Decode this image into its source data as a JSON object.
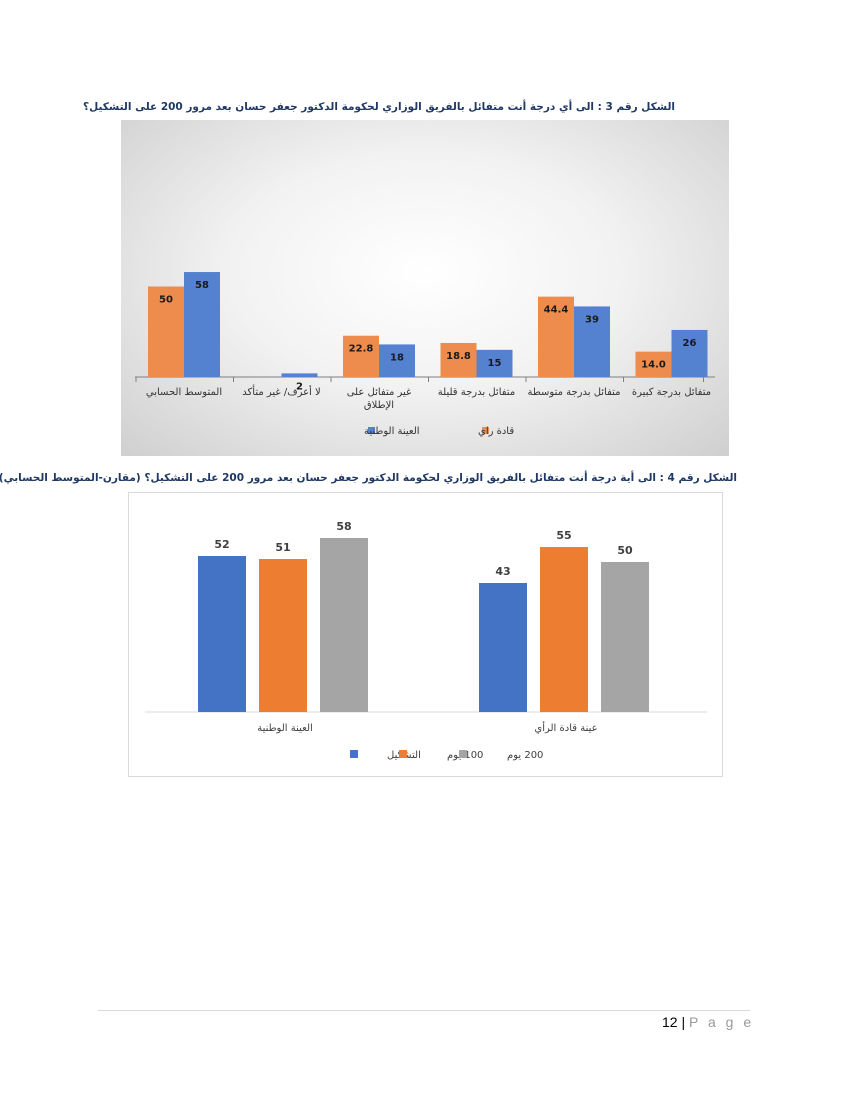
{
  "chart3": {
    "title": "الشكل رقم 3 : الى أي درجة أنت متفائل بالفريق الوزاري لحكومة الدكتور جعفر حسان بعد مرور 200 على التشكيل؟"
  },
  "chart4": {
    "title": "الشكل رقم 4 : الى أية درجة أنت متفائل بالفريق الوزاري لحكومة الدكتور جعفر حسان بعد مرور 200 على التشكيل؟ (مقارن-المتوسط الحسابي)"
  },
  "footer": {
    "page_number": "12",
    "separator": "|",
    "page_label": "P a g e"
  },
  "chart_data": [
    {
      "type": "bar",
      "categories": [
        "المتوسط الحسابي",
        "لا أعرف/ غير متأكد",
        "غير متفائل على الإطلاق",
        "متفائل بدرجة قليلة",
        "متفائل بدرجة متوسطة",
        "متفائل بدرجة كبيرة"
      ],
      "series": [
        {
          "name": "قادة راي",
          "values": [
            50,
            null,
            22.8,
            18.8,
            44.4,
            14.0
          ],
          "labels": [
            "50",
            "",
            "22.8",
            "18.8",
            "44.4",
            "14.0"
          ],
          "color": "#ed8c4d"
        },
        {
          "name": "العينة الوطنية",
          "values": [
            58,
            2,
            18,
            15,
            39,
            26
          ],
          "labels": [
            "58",
            "2",
            "18",
            "15",
            "39",
            "26"
          ],
          "color": "#5582d0"
        }
      ],
      "ylim": [
        0,
        70
      ],
      "legend": "bottom"
    },
    {
      "type": "bar",
      "categories": [
        "العينة الوطنية",
        "عينة قادة الرأي"
      ],
      "series": [
        {
          "name": "التشكيل",
          "values": [
            52,
            43
          ],
          "color": "#4472c4"
        },
        {
          "name": "100 يوم",
          "values": [
            51,
            55
          ],
          "color": "#ed7d31"
        },
        {
          "name": "200 يوم",
          "values": [
            58,
            50
          ],
          "color": "#a5a5a5"
        }
      ],
      "ylim": [
        0,
        70
      ],
      "legend": "bottom"
    }
  ]
}
